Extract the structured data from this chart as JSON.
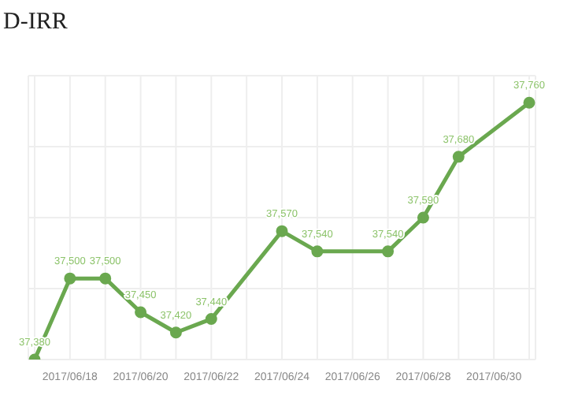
{
  "chart_data": {
    "type": "line",
    "title": "D-IRR",
    "categories": [
      null,
      "2017/06/18",
      null,
      "2017/06/20",
      null,
      "2017/06/22",
      null,
      "2017/06/24",
      null,
      "2017/06/26",
      null,
      "2017/06/28",
      null,
      "2017/06/30",
      null
    ],
    "series": [
      {
        "color": "#6aa84f",
        "values": [
          37380,
          37500,
          37500,
          37450,
          37420,
          37440,
          null,
          37570,
          37540,
          null,
          37540,
          37590,
          37680,
          null,
          37760
        ],
        "value_labels": [
          "37,380",
          "37,500",
          "37,500",
          "37,450",
          "37,420",
          "37,440",
          null,
          "37,570",
          "37,540",
          null,
          "37,540",
          "37,590",
          "37,680",
          null,
          "37,760"
        ]
      }
    ],
    "grid": true,
    "tick_labels": "x",
    "marker": "circle"
  }
}
